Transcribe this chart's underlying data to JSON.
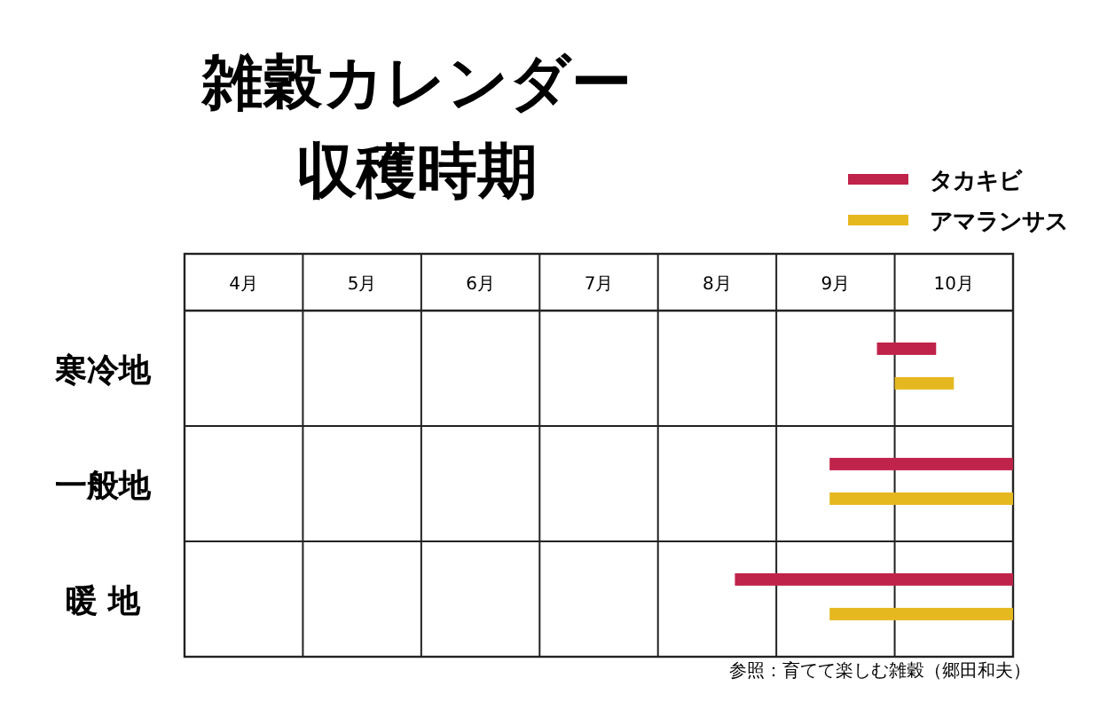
{
  "chart_data": {
    "type": "bar",
    "orientation": "horizontal",
    "title": "雑穀カレンダー",
    "subtitle": "収穫時期",
    "categories": [
      "寒冷地",
      "一般地",
      "暖 地"
    ],
    "series": [
      {
        "name": "タカキビ",
        "color": "#c0234a",
        "base": [
          9.85,
          9.45,
          8.65
        ],
        "values": [
          0.5,
          1.55,
          2.35
        ]
      },
      {
        "name": "アマランサス",
        "color": "#e6b820",
        "base": [
          10.0,
          9.45,
          9.45
        ],
        "values": [
          0.5,
          1.55,
          1.55
        ]
      }
    ],
    "xlim": [
      4,
      11
    ],
    "xticks": [
      {
        "value": 4,
        "label": null
      },
      {
        "value": 4.5,
        "label": "4月"
      },
      {
        "value": 5,
        "label": null
      },
      {
        "value": 5.5,
        "label": "5月"
      },
      {
        "value": 6,
        "label": null
      },
      {
        "value": 6.5,
        "label": "6月"
      },
      {
        "value": 7,
        "label": null
      },
      {
        "value": 7.5,
        "label": "7月"
      },
      {
        "value": 8,
        "label": null
      },
      {
        "value": 8.5,
        "label": "8月"
      },
      {
        "value": 9,
        "label": null
      },
      {
        "value": 9.5,
        "label": "9月"
      },
      {
        "value": 10,
        "label": null
      },
      {
        "value": 10.5,
        "label": "10月"
      },
      {
        "value": 11,
        "label": null
      }
    ],
    "grid": true,
    "legend": "top right",
    "annotations": [
      "参照：育てて楽しむ雑穀（郷田和夫）"
    ]
  }
}
